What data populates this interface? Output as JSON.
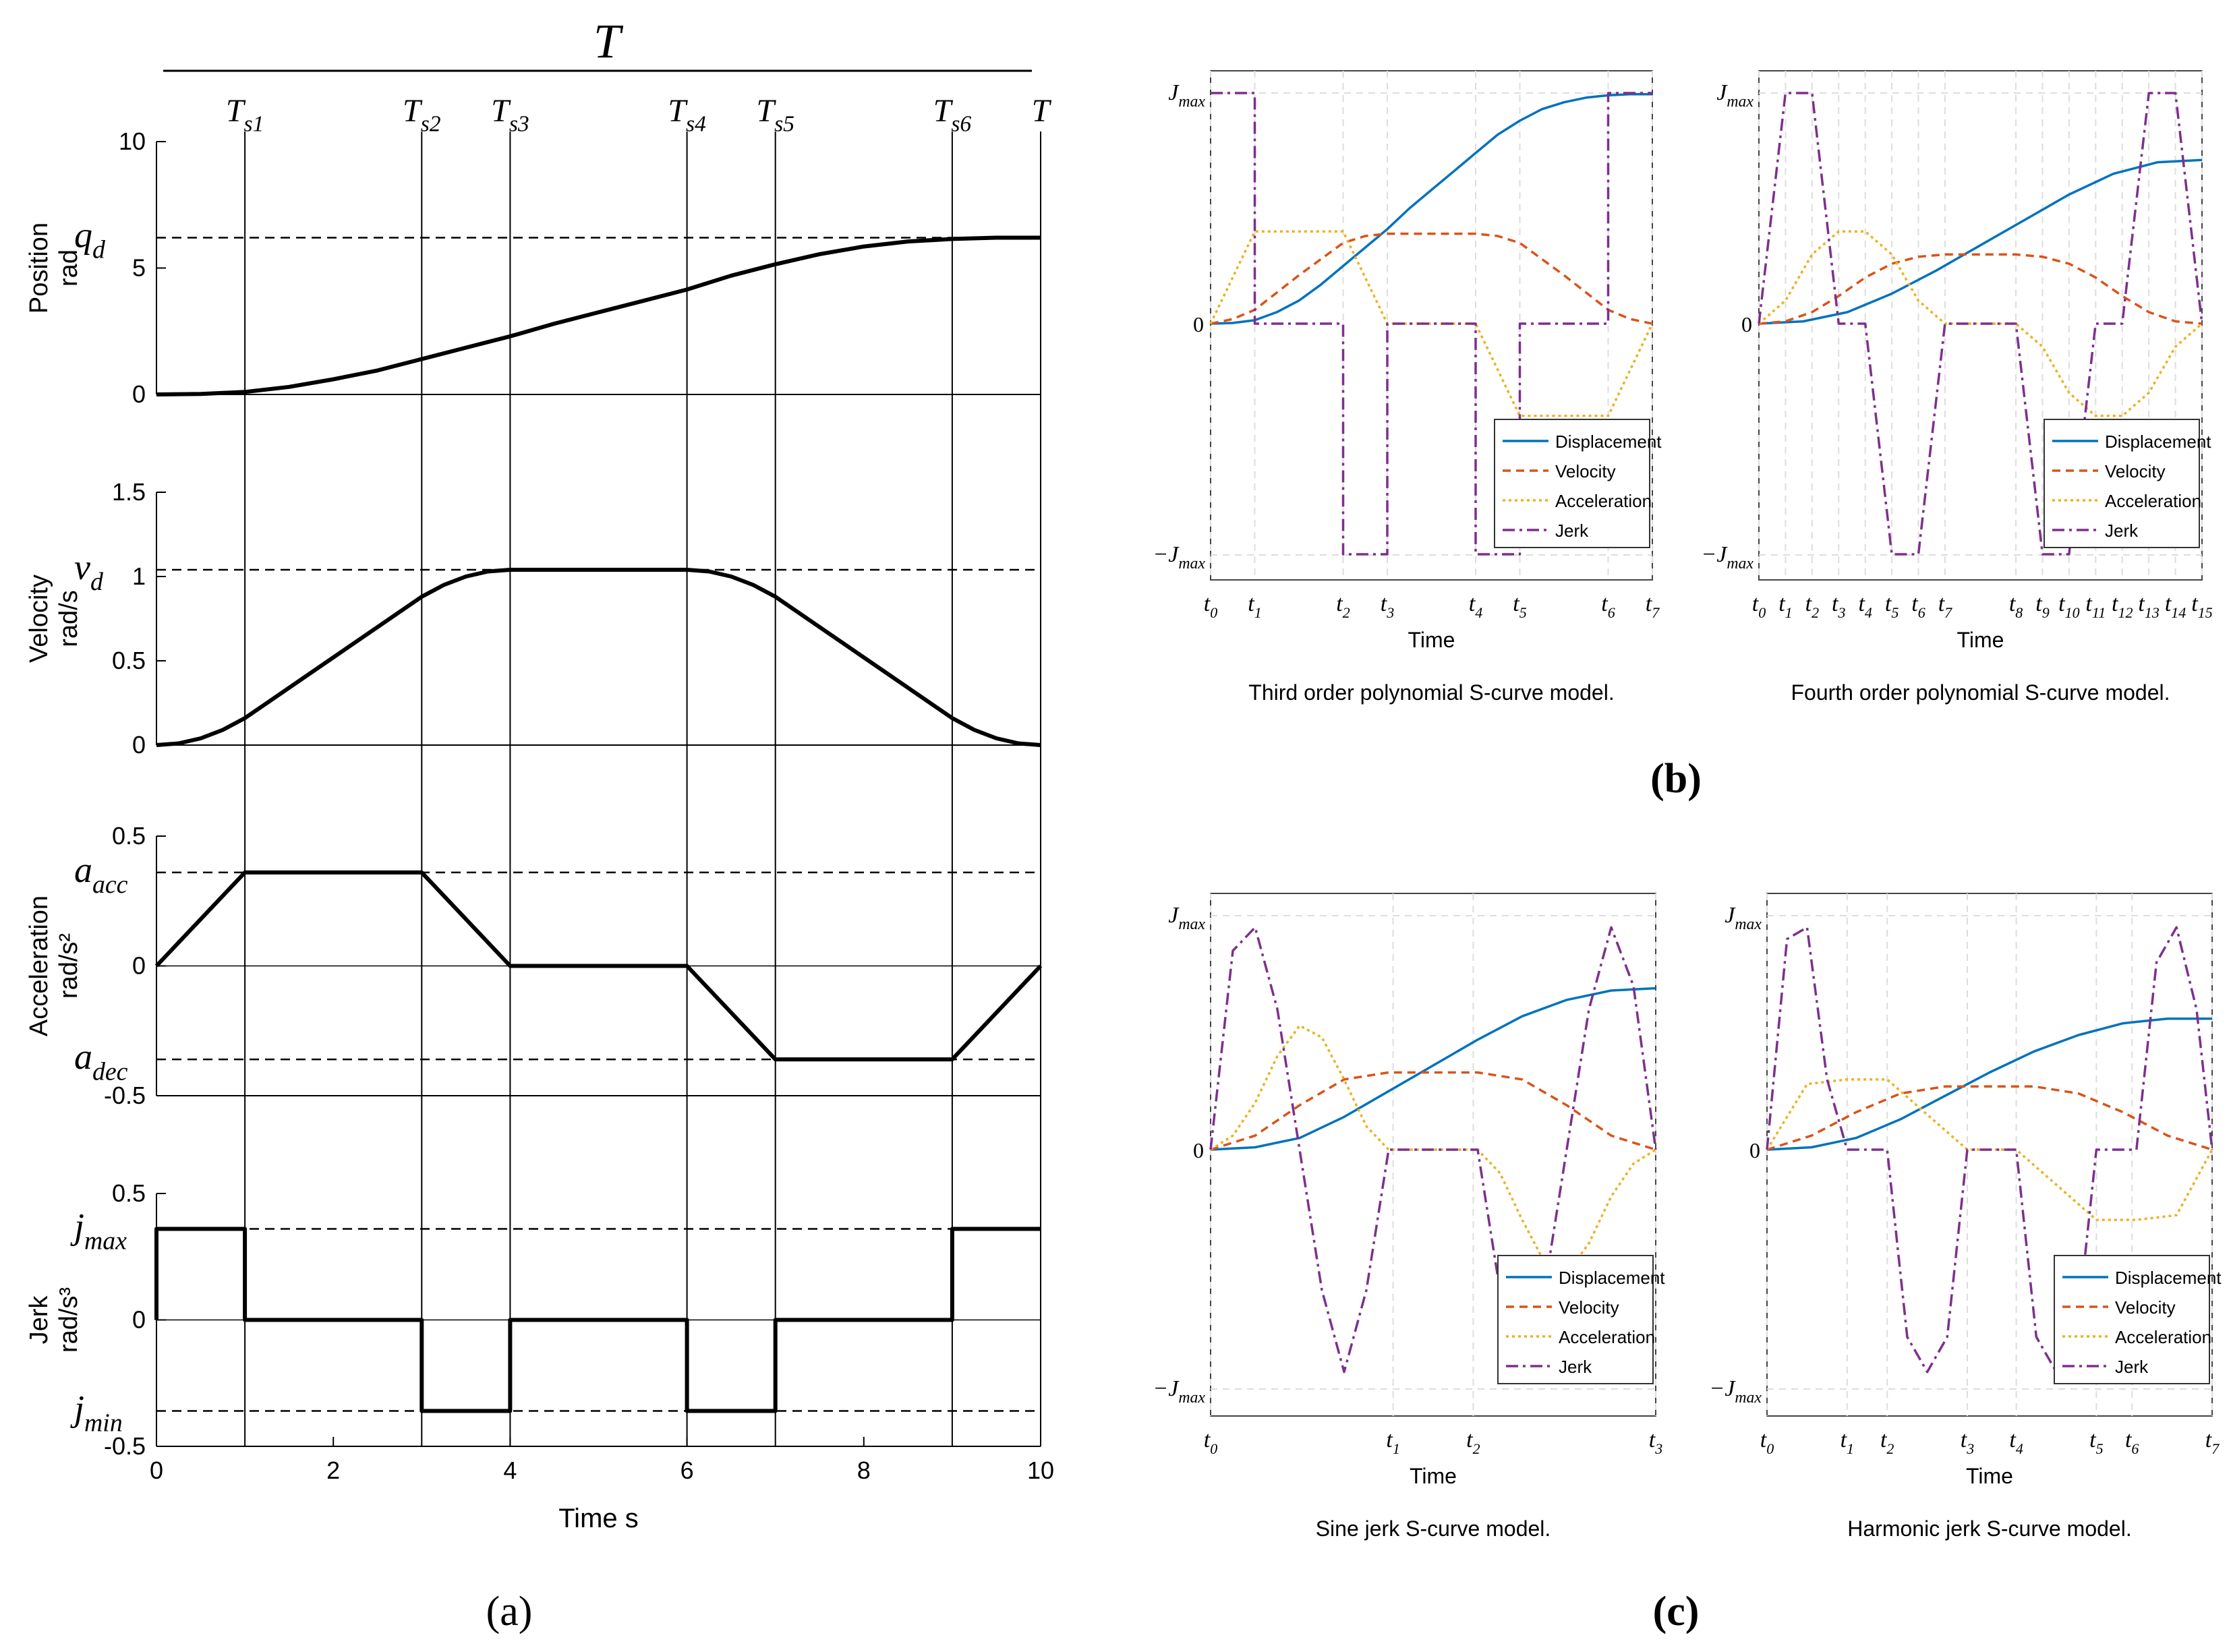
{
  "figure": {
    "panel_a_label": "(a)",
    "panel_b_label": "(b)",
    "panel_c_label": "(c)",
    "top_total_label": "T"
  },
  "colors": {
    "displacement": "#0072BD",
    "velocity": "#D95319",
    "acceleration": "#EDB120",
    "jerk": "#7E2F8E",
    "ink": "#000000",
    "grid": "#dddddd"
  },
  "chart_data": [
    {
      "id": "a-position",
      "type": "line",
      "ylabel": [
        "Position",
        "rad"
      ],
      "xlim": [
        0,
        10
      ],
      "ylim": [
        0,
        10
      ],
      "yticks": [
        0,
        5,
        10
      ],
      "ytick_labels": [
        "0",
        "5",
        "10"
      ],
      "ref_label": "q_d",
      "ref_value": 6.2,
      "series": [
        {
          "name": "position",
          "x": [
            0,
            0.5,
            1,
            1.5,
            2,
            2.5,
            3,
            3.5,
            4,
            4.5,
            5,
            5.5,
            6,
            6.5,
            7,
            7.5,
            8,
            8.5,
            9,
            9.5,
            10
          ],
          "y": [
            0,
            0.02,
            0.1,
            0.3,
            0.6,
            0.95,
            1.4,
            1.85,
            2.3,
            2.8,
            3.25,
            3.7,
            4.15,
            4.7,
            5.15,
            5.55,
            5.85,
            6.05,
            6.15,
            6.2,
            6.2
          ]
        }
      ]
    },
    {
      "id": "a-velocity",
      "type": "line",
      "ylabel": [
        "Velocity",
        "rad/s"
      ],
      "xlim": [
        0,
        10
      ],
      "ylim": [
        0,
        1.5
      ],
      "yticks": [
        0,
        0.5,
        1,
        1.5
      ],
      "ytick_labels": [
        "0",
        "0.5",
        "1",
        "1.5"
      ],
      "ref_label": "v_d",
      "ref_value": 1.04,
      "series": [
        {
          "name": "velocity",
          "x": [
            0,
            0.25,
            0.5,
            0.75,
            1,
            2,
            3,
            3.25,
            3.5,
            3.75,
            4,
            5,
            6,
            6.25,
            6.5,
            6.75,
            7,
            8,
            9,
            9.25,
            9.5,
            9.75,
            10
          ],
          "y": [
            0,
            0.01,
            0.04,
            0.09,
            0.16,
            0.52,
            0.88,
            0.95,
            1.0,
            1.03,
            1.04,
            1.04,
            1.04,
            1.03,
            1.0,
            0.95,
            0.88,
            0.52,
            0.16,
            0.09,
            0.04,
            0.01,
            0
          ]
        }
      ]
    },
    {
      "id": "a-acceleration",
      "type": "line",
      "ylabel": [
        "Acceleration",
        "rad/s²"
      ],
      "xlim": [
        0,
        10
      ],
      "ylim": [
        -0.5,
        0.5
      ],
      "yticks": [
        -0.5,
        0,
        0.5
      ],
      "ytick_labels": [
        "-0.5",
        "0",
        "0.5"
      ],
      "ref_labels": [
        "a_acc",
        "a_dec"
      ],
      "ref_values": [
        0.36,
        -0.36
      ],
      "series": [
        {
          "name": "acceleration",
          "x": [
            0,
            1,
            3,
            4,
            6,
            7,
            9,
            10
          ],
          "y": [
            0,
            0.36,
            0.36,
            0,
            0,
            -0.36,
            -0.36,
            0
          ]
        }
      ]
    },
    {
      "id": "a-jerk",
      "type": "line",
      "ylabel": [
        "Jerk",
        "rad/s³"
      ],
      "xlabel": "Time s",
      "xlim": [
        0,
        10
      ],
      "ylim": [
        -0.5,
        0.5
      ],
      "xticks": [
        0,
        2,
        4,
        6,
        8,
        10
      ],
      "xtick_labels": [
        "0",
        "2",
        "4",
        "6",
        "8",
        "10"
      ],
      "yticks": [
        -0.5,
        0,
        0.5
      ],
      "ytick_labels": [
        "-0.5",
        "0",
        "0.5"
      ],
      "ref_labels": [
        "j_max",
        "j_min"
      ],
      "ref_values": [
        0.36,
        -0.36
      ],
      "series": [
        {
          "name": "jerk",
          "x": [
            0,
            0,
            1,
            1,
            3,
            3,
            4,
            4,
            6,
            6,
            7,
            7,
            9,
            9,
            10
          ],
          "y": [
            0,
            0.36,
            0.36,
            0,
            0,
            -0.36,
            -0.36,
            0,
            0,
            -0.36,
            -0.36,
            0,
            0,
            0.36,
            0.36
          ]
        }
      ]
    },
    {
      "id": "a-switch-times",
      "type": "vlines",
      "x": [
        1,
        3,
        4,
        6,
        7,
        9,
        10
      ],
      "labels": [
        "T_s1",
        "T_s2",
        "T_s3",
        "T_s4",
        "T_s5",
        "T_s6",
        "T"
      ]
    },
    {
      "id": "b-third-order",
      "type": "line",
      "title": "Third order polynomial S-curve model.",
      "xlabel": "Time",
      "ytick_labels": [
        "J_max",
        "0",
        "-J_max"
      ],
      "xtick_labels": [
        "t0",
        "t1",
        "t2",
        "t3",
        "t4",
        "t5",
        "t6",
        "t7"
      ],
      "xticks": [
        0,
        1,
        3,
        4,
        6,
        7,
        9,
        10
      ],
      "legend": [
        "Displacement",
        "Velocity",
        "Acceleration",
        "Jerk"
      ],
      "legend_loc": "bottom-right",
      "xlim": [
        0,
        10
      ],
      "ylim": [
        -1,
        1
      ],
      "series": [
        {
          "name": "Displacement",
          "x": [
            0,
            0.5,
            1,
            1.5,
            2,
            2.5,
            3,
            3.5,
            4,
            4.5,
            5,
            5.5,
            6,
            6.5,
            7,
            7.5,
            8,
            8.5,
            9,
            9.5,
            10
          ],
          "y": [
            0,
            0.003,
            0.015,
            0.05,
            0.1,
            0.17,
            0.25,
            0.33,
            0.41,
            0.5,
            0.58,
            0.66,
            0.74,
            0.82,
            0.88,
            0.93,
            0.96,
            0.98,
            0.99,
            0.995,
            0.995
          ]
        },
        {
          "name": "Velocity",
          "x": [
            0,
            0.5,
            1,
            2,
            3,
            3.5,
            4,
            5,
            6,
            6.5,
            7,
            8,
            9,
            9.5,
            10
          ],
          "y": [
            0,
            0.02,
            0.06,
            0.21,
            0.35,
            0.38,
            0.39,
            0.39,
            0.39,
            0.38,
            0.35,
            0.21,
            0.06,
            0.02,
            0
          ]
        },
        {
          "name": "Acceleration",
          "x": [
            0,
            1,
            2,
            3,
            4,
            5,
            6,
            7,
            8,
            9,
            10
          ],
          "y": [
            0,
            0.4,
            0.4,
            0.4,
            0,
            0,
            0,
            -0.4,
            -0.4,
            -0.4,
            0
          ]
        },
        {
          "name": "Jerk",
          "x": [
            0,
            1,
            1,
            3,
            3,
            4,
            4,
            6,
            6,
            7,
            7,
            9,
            9,
            10
          ],
          "y": [
            1,
            1,
            0,
            0,
            -1,
            -1,
            0,
            0,
            -1,
            -1,
            0,
            0,
            1,
            1
          ]
        }
      ]
    },
    {
      "id": "b-fourth-order",
      "type": "line",
      "title": "Fourth order polynomial S-curve model.",
      "xlabel": "Time",
      "ytick_labels": [
        "J_max",
        "0",
        "-J_max"
      ],
      "xtick_labels": [
        "t0",
        "t1",
        "t2",
        "t3",
        "t4",
        "t5",
        "t6",
        "t7",
        "t8",
        "t9",
        "t10",
        "t11",
        "t12",
        "t13",
        "t14",
        "t15"
      ],
      "xticks": [
        0,
        0.6,
        1.2,
        1.8,
        2.4,
        3.0,
        3.6,
        4.2,
        5.8,
        6.4,
        7.0,
        7.6,
        8.2,
        8.8,
        9.4,
        10
      ],
      "legend": [
        "Displacement",
        "Velocity",
        "Acceleration",
        "Jerk"
      ],
      "legend_loc": "bottom-right",
      "xlim": [
        0,
        10
      ],
      "ylim": [
        -1,
        1
      ],
      "series": [
        {
          "name": "Displacement",
          "x": [
            0,
            1,
            2,
            3,
            4,
            5,
            6,
            7,
            8,
            9,
            10
          ],
          "y": [
            0,
            0.01,
            0.05,
            0.13,
            0.23,
            0.34,
            0.45,
            0.56,
            0.65,
            0.7,
            0.71
          ]
        },
        {
          "name": "Velocity",
          "x": [
            0,
            0.6,
            1.2,
            1.8,
            2.4,
            3.0,
            3.6,
            4.2,
            5.8,
            6.4,
            7.0,
            7.6,
            8.2,
            8.8,
            9.4,
            10
          ],
          "y": [
            0,
            0.01,
            0.05,
            0.12,
            0.2,
            0.26,
            0.29,
            0.3,
            0.3,
            0.29,
            0.26,
            0.2,
            0.12,
            0.05,
            0.01,
            0
          ]
        },
        {
          "name": "Acceleration",
          "x": [
            0,
            0.6,
            1.2,
            1.8,
            2.4,
            3.0,
            3.6,
            4.2,
            5.8,
            6.4,
            7.0,
            7.6,
            8.2,
            8.8,
            9.4,
            10
          ],
          "y": [
            0,
            0.1,
            0.3,
            0.4,
            0.4,
            0.3,
            0.1,
            0,
            0,
            -0.1,
            -0.3,
            -0.4,
            -0.4,
            -0.3,
            -0.1,
            0
          ]
        },
        {
          "name": "Jerk",
          "x": [
            0,
            0.6,
            1.2,
            1.8,
            2.4,
            3.0,
            3.6,
            4.2,
            5.8,
            6.4,
            7.0,
            7.6,
            8.2,
            8.8,
            9.4,
            10
          ],
          "y": [
            0,
            1,
            1,
            0,
            0,
            -1,
            -1,
            0,
            0,
            -1,
            -1,
            0,
            0,
            1,
            1,
            0
          ]
        }
      ]
    },
    {
      "id": "c-sine-jerk",
      "type": "line",
      "title": "Sine jerk S-curve model.",
      "xlabel": "Time",
      "ytick_labels": [
        "J_max",
        "0",
        "-J_max"
      ],
      "xtick_labels": [
        "t0",
        "t1",
        "t2",
        "t3"
      ],
      "xticks": [
        0,
        4.1,
        5.9,
        10
      ],
      "legend": [
        "Displacement",
        "Velocity",
        "Acceleration",
        "Jerk"
      ],
      "legend_loc": "bottom-right",
      "xlim": [
        0,
        10
      ],
      "ylim": [
        -1,
        1
      ],
      "series": [
        {
          "name": "Displacement",
          "x": [
            0,
            1,
            2,
            3,
            4,
            5,
            6,
            7,
            8,
            9,
            10
          ],
          "y": [
            0,
            0.01,
            0.05,
            0.14,
            0.25,
            0.36,
            0.47,
            0.57,
            0.64,
            0.68,
            0.69
          ]
        },
        {
          "name": "Velocity",
          "x": [
            0,
            1,
            2,
            3,
            4,
            5,
            6,
            7,
            8,
            9,
            10
          ],
          "y": [
            0,
            0.06,
            0.19,
            0.3,
            0.33,
            0.33,
            0.33,
            0.3,
            0.19,
            0.06,
            0
          ]
        },
        {
          "name": "Acceleration",
          "x": [
            0,
            0.5,
            1,
            1.5,
            2,
            2.5,
            3,
            3.5,
            4,
            6,
            6.5,
            7,
            7.5,
            8,
            8.5,
            9,
            9.5,
            10
          ],
          "y": [
            0,
            0.06,
            0.2,
            0.4,
            0.53,
            0.48,
            0.3,
            0.1,
            0,
            0,
            -0.1,
            -0.3,
            -0.48,
            -0.53,
            -0.4,
            -0.2,
            -0.06,
            0
          ]
        },
        {
          "name": "Jerk",
          "x": [
            0,
            0.5,
            1,
            1.5,
            2,
            2.5,
            3,
            3.5,
            4,
            6,
            6.5,
            7,
            7.5,
            8,
            8.5,
            9,
            9.5,
            10
          ],
          "y": [
            0,
            0.85,
            0.95,
            0.6,
            0,
            -0.6,
            -0.95,
            -0.6,
            0,
            0,
            -0.6,
            -0.95,
            -0.6,
            0,
            0.6,
            0.95,
            0.7,
            0
          ]
        }
      ]
    },
    {
      "id": "c-harmonic-jerk",
      "type": "line",
      "title": "Harmonic jerk S-curve model.",
      "xlabel": "Time",
      "ytick_labels": [
        "J_max",
        "0",
        "-J_max"
      ],
      "xtick_labels": [
        "t0",
        "t1",
        "t2",
        "t3",
        "t4",
        "t5",
        "t6",
        "t7"
      ],
      "xticks": [
        0,
        1.8,
        2.7,
        4.5,
        5.6,
        7.4,
        8.2,
        10
      ],
      "legend": [
        "Displacement",
        "Velocity",
        "Acceleration",
        "Jerk"
      ],
      "legend_loc": "bottom-right",
      "xlim": [
        0,
        10
      ],
      "ylim": [
        -1,
        1
      ],
      "series": [
        {
          "name": "Displacement",
          "x": [
            0,
            1,
            2,
            3,
            4,
            5,
            6,
            7,
            8,
            9,
            10
          ],
          "y": [
            0,
            0.01,
            0.05,
            0.13,
            0.23,
            0.33,
            0.42,
            0.49,
            0.54,
            0.56,
            0.56
          ]
        },
        {
          "name": "Velocity",
          "x": [
            0,
            1,
            2,
            3,
            4,
            5,
            6,
            7,
            8,
            9,
            10
          ],
          "y": [
            0,
            0.06,
            0.16,
            0.24,
            0.27,
            0.27,
            0.27,
            0.24,
            0.16,
            0.06,
            0
          ]
        },
        {
          "name": "Acceleration",
          "x": [
            0,
            0.9,
            1.8,
            2.7,
            3.6,
            4.5,
            5.6,
            6.5,
            7.4,
            8.3,
            9.2,
            10
          ],
          "y": [
            0,
            0.28,
            0.3,
            0.3,
            0.15,
            0,
            0,
            -0.15,
            -0.3,
            -0.3,
            -0.28,
            0
          ]
        },
        {
          "name": "Jerk",
          "x": [
            0,
            0.45,
            0.9,
            1.35,
            1.8,
            2.7,
            3.15,
            3.6,
            4.05,
            4.5,
            5.6,
            6.05,
            6.5,
            6.95,
            7.4,
            8.3,
            8.75,
            9.2,
            9.65,
            10
          ],
          "y": [
            0,
            0.9,
            0.95,
            0.3,
            0,
            0,
            -0.8,
            -0.95,
            -0.8,
            0,
            0,
            -0.8,
            -0.95,
            -0.8,
            0,
            0,
            0.8,
            0.95,
            0.6,
            0
          ]
        }
      ]
    }
  ]
}
